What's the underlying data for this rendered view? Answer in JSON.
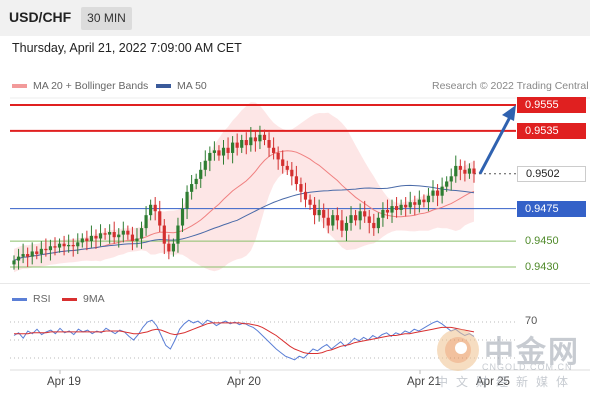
{
  "header": {
    "symbol": "USD/CHF",
    "timeframe": "30 MIN",
    "datetime": "Thursday, April 21, 2022 7:09:00 AM CET"
  },
  "legend": {
    "ma20": "MA 20 + Bollinger Bands",
    "ma50": "MA 50",
    "credit": "Research © 2022 Trading Central"
  },
  "rsi_legend": {
    "rsi": "RSI",
    "ma": "9MA"
  },
  "watermark": {
    "cn": "中金网",
    "url": "CNGOLD.COM.CN",
    "sub": "中文财经新媒体"
  },
  "colors": {
    "resistance": "#e02020",
    "pivot": "#3461c8",
    "support": "#8bbf6a",
    "candle_up": "#2e7d32",
    "candle_down": "#d32f2f",
    "bollinger_fill": "#fde3e3",
    "ma20": "#f08080",
    "ma50": "#4a6aa8",
    "rsi": "#5b7fd6",
    "rsi_ma": "#d83030",
    "arrow": "#2f62b0"
  },
  "chart_data": [
    {
      "type": "candlestick",
      "title": "USD/CHF",
      "timeframe": "30 MIN",
      "x_ticks": [
        "Apr 19",
        "Apr 20",
        "Apr 21",
        "Apr 25"
      ],
      "ylim": [
        0.942,
        0.956
      ],
      "levels": [
        {
          "value": 0.9555,
          "label": "0.9555",
          "kind": "resistance"
        },
        {
          "value": 0.9535,
          "label": "0.9535",
          "kind": "resistance"
        },
        {
          "value": 0.9502,
          "label": "0.9502",
          "kind": "current"
        },
        {
          "value": 0.9475,
          "label": "0.9475",
          "kind": "pivot"
        },
        {
          "value": 0.945,
          "label": "0.9450",
          "kind": "support"
        },
        {
          "value": 0.943,
          "label": "0.9430",
          "kind": "support"
        }
      ],
      "series": [
        {
          "name": "MA 20 + Bollinger Bands"
        },
        {
          "name": "MA 50"
        }
      ],
      "closes": [
        0.9435,
        0.9438,
        0.944,
        0.9438,
        0.9442,
        0.944,
        0.9444,
        0.9443,
        0.9446,
        0.9445,
        0.9448,
        0.9446,
        0.9447,
        0.9446,
        0.9449,
        0.9452,
        0.945,
        0.9454,
        0.9452,
        0.9456,
        0.9455,
        0.9457,
        0.9453,
        0.9455,
        0.9458,
        0.9455,
        0.945,
        0.9452,
        0.946,
        0.947,
        0.9478,
        0.9473,
        0.9462,
        0.9448,
        0.9442,
        0.9448,
        0.9462,
        0.9475,
        0.9488,
        0.9494,
        0.9498,
        0.9505,
        0.9512,
        0.9518,
        0.952,
        0.9516,
        0.9522,
        0.9518,
        0.9526,
        0.9522,
        0.9528,
        0.9524,
        0.953,
        0.9527,
        0.9532,
        0.9528,
        0.9522,
        0.9518,
        0.9513,
        0.9508,
        0.9505,
        0.95,
        0.9494,
        0.9488,
        0.9482,
        0.9478,
        0.947,
        0.9474,
        0.9468,
        0.9462,
        0.947,
        0.9466,
        0.9458,
        0.9464,
        0.947,
        0.9466,
        0.9473,
        0.9469,
        0.9464,
        0.946,
        0.9468,
        0.9474,
        0.9472,
        0.9477,
        0.9474,
        0.9478,
        0.9476,
        0.948,
        0.9478,
        0.9482,
        0.948,
        0.9485,
        0.9489,
        0.9485,
        0.9492,
        0.9496,
        0.95,
        0.9508,
        0.9505,
        0.9502,
        0.9506,
        0.9502
      ]
    },
    {
      "type": "line",
      "title": "RSI",
      "series": [
        {
          "name": "RSI"
        },
        {
          "name": "9MA"
        }
      ],
      "ylabel_marks": [
        "70"
      ],
      "rsi": [
        55,
        58,
        52,
        60,
        57,
        62,
        56,
        59,
        61,
        57,
        63,
        58,
        60,
        56,
        62,
        59,
        61,
        57,
        60,
        58,
        63,
        60,
        57,
        61,
        59,
        54,
        50,
        56,
        64,
        70,
        72,
        66,
        55,
        44,
        40,
        50,
        62,
        68,
        72,
        69,
        71,
        67,
        72,
        70,
        66,
        69,
        71,
        68,
        70,
        67,
        69,
        66,
        64,
        60,
        55,
        50,
        45,
        40,
        36,
        32,
        30,
        28,
        32,
        30,
        35,
        40,
        38,
        42,
        45,
        40,
        44,
        48,
        43,
        47,
        52,
        49,
        53,
        50,
        55,
        52,
        56,
        58,
        54,
        58,
        56,
        60,
        58,
        62,
        60,
        63,
        66,
        69,
        71,
        68,
        64,
        60,
        62,
        58,
        55,
        57,
        54
      ],
      "ma": [
        57,
        57,
        57,
        57,
        58,
        58,
        58,
        58,
        59,
        59,
        59,
        59,
        59,
        59,
        59,
        59,
        59,
        59,
        59,
        59,
        60,
        60,
        60,
        60,
        59,
        58,
        57,
        57,
        58,
        59,
        61,
        62,
        61,
        59,
        57,
        56,
        57,
        58,
        60,
        62,
        64,
        66,
        68,
        69,
        69,
        69,
        69,
        69,
        69,
        69,
        68,
        68,
        67,
        66,
        64,
        61,
        58,
        55,
        51,
        47,
        43,
        40,
        38,
        36,
        35,
        35,
        35,
        36,
        38,
        39,
        41,
        43,
        44,
        45,
        47,
        48,
        49,
        50,
        51,
        52,
        53,
        54,
        55,
        55,
        56,
        57,
        57,
        58,
        59,
        60,
        61,
        62,
        63,
        64,
        64,
        64,
        63,
        62,
        61,
        60,
        59
      ]
    }
  ]
}
